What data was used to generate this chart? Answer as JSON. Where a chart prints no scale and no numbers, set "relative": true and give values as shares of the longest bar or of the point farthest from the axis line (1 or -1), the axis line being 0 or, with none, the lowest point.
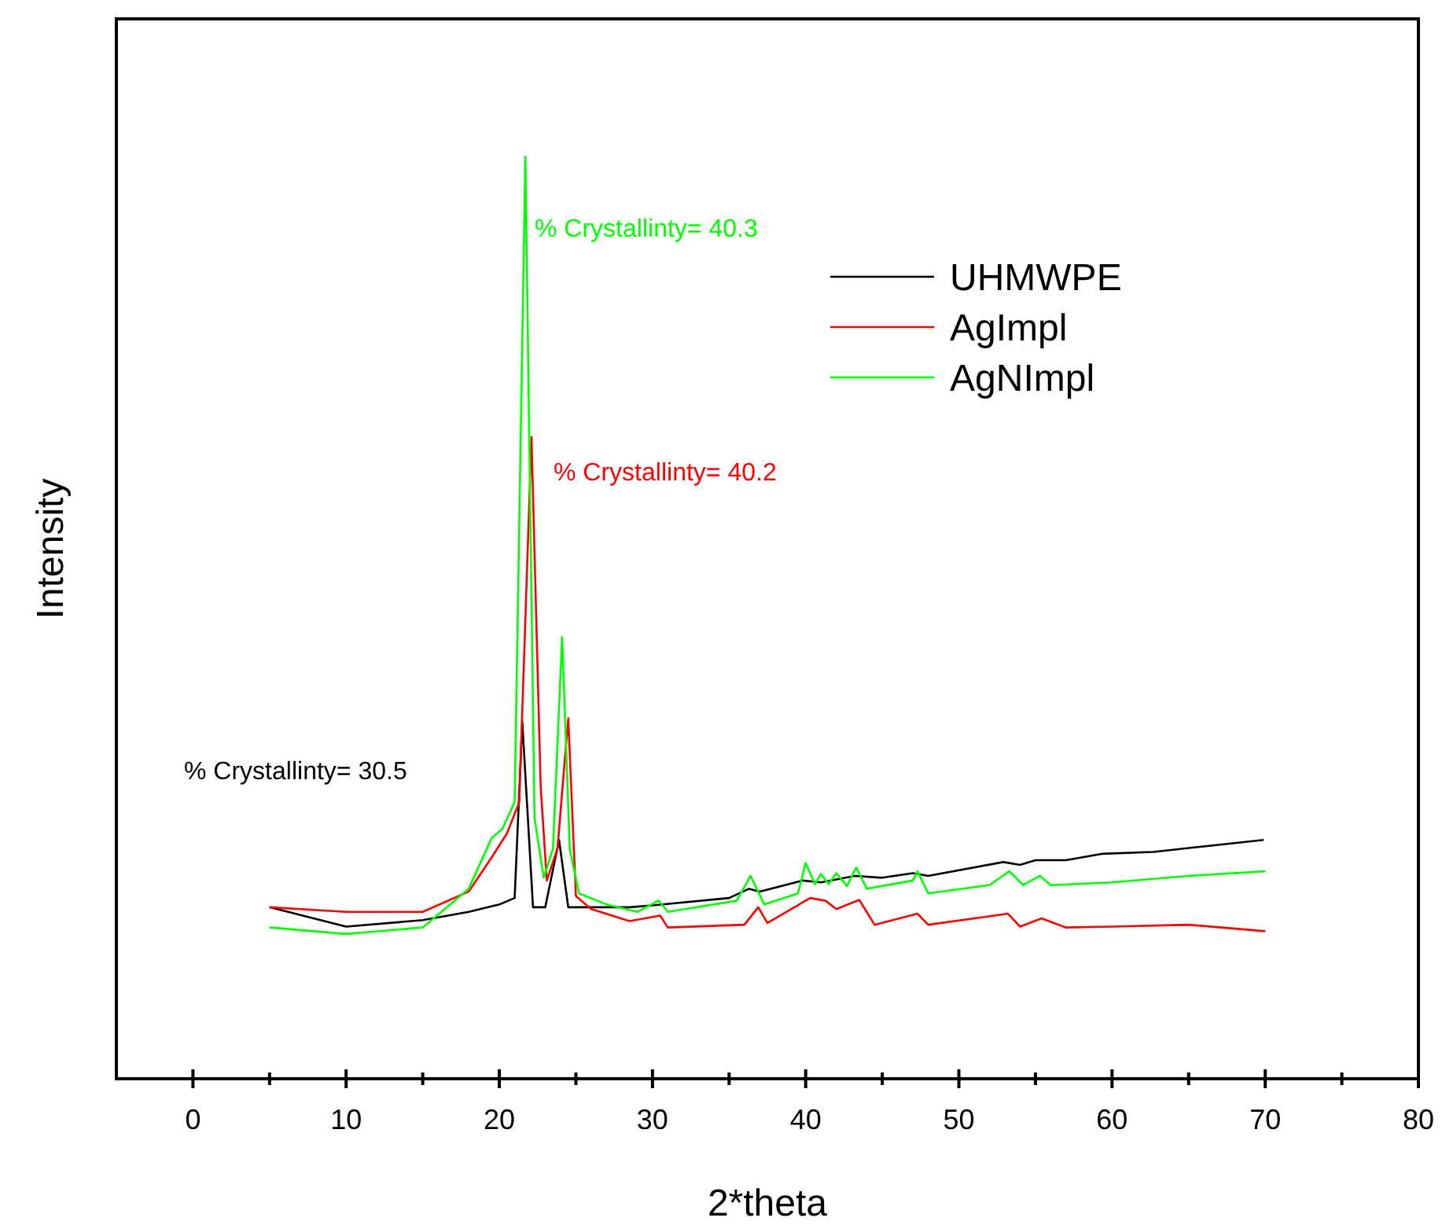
{
  "chart_data": {
    "type": "line",
    "relative": true,
    "xlabel": "2*theta",
    "ylabel": "Intensity",
    "xlim": [
      -5,
      80
    ],
    "xticks": [
      0,
      {
        "value": 5,
        "label": null
      },
      10,
      {
        "value": 15,
        "label": null
      },
      20,
      {
        "value": 25,
        "label": null
      },
      30,
      {
        "value": 35,
        "label": null
      },
      40,
      {
        "value": 45,
        "label": null
      },
      50,
      {
        "value": 55,
        "label": null
      },
      60,
      {
        "value": 65,
        "label": null
      },
      70,
      {
        "value": 75,
        "label": null
      },
      80
    ],
    "legend": "top right",
    "grid": false,
    "marker": "none",
    "line_style": "solid",
    "series": [
      {
        "name": "UHMWPE",
        "color": "#000000",
        "x": [
          5,
          10,
          15,
          18,
          20,
          21,
          21.5,
          22.2,
          23,
          23.9,
          24.5,
          26,
          28.5,
          30,
          35,
          36.3,
          37,
          39.8,
          41,
          43.2,
          45,
          47,
          48,
          52.9,
          54,
          55,
          57,
          59.4,
          62.7,
          66,
          69.9
        ],
        "values": [
          0.186,
          0.165,
          0.172,
          0.181,
          0.189,
          0.196,
          0.387,
          0.186,
          0.186,
          0.259,
          0.186,
          0.186,
          0.186,
          0.188,
          0.196,
          0.206,
          0.203,
          0.215,
          0.213,
          0.22,
          0.218,
          0.223,
          0.22,
          0.235,
          0.232,
          0.237,
          0.237,
          0.244,
          0.246,
          0.252,
          0.259
        ]
      },
      {
        "name": "AgImpl",
        "color": "#ff0000",
        "x": [
          5,
          10,
          15,
          18,
          19.5,
          20.5,
          21.3,
          22.1,
          22.7,
          23.1,
          23.8,
          24.5,
          25,
          26,
          28.5,
          30.5,
          31,
          36,
          36.9,
          37.5,
          40.3,
          41.3,
          42,
          43.5,
          44.5,
          47.3,
          48,
          53.2,
          54,
          55.4,
          57,
          60,
          65,
          70
        ],
        "values": [
          0.186,
          0.181,
          0.181,
          0.203,
          0.24,
          0.266,
          0.3,
          0.696,
          0.317,
          0.215,
          0.25,
          0.391,
          0.198,
          0.184,
          0.171,
          0.177,
          0.164,
          0.167,
          0.186,
          0.169,
          0.196,
          0.193,
          0.184,
          0.194,
          0.167,
          0.179,
          0.167,
          0.179,
          0.165,
          0.174,
          0.164,
          0.165,
          0.167,
          0.16
        ]
      },
      {
        "name": "AgNImpl",
        "color": "#00ff00",
        "x": [
          5,
          10,
          15,
          18,
          19.5,
          20.2,
          21,
          21.7,
          22.3,
          22.9,
          23.5,
          24.1,
          24.6,
          25.2,
          27,
          29,
          30.4,
          31,
          35.5,
          36.4,
          37.3,
          39.5,
          40,
          40.6,
          41,
          41.5,
          42,
          42.7,
          43.3,
          44,
          47,
          47.3,
          48,
          52,
          53.3,
          54.2,
          55.3,
          56,
          60,
          65,
          70
        ],
        "values": [
          0.164,
          0.157,
          0.164,
          0.206,
          0.261,
          0.271,
          0.3,
          1,
          0.283,
          0.218,
          0.249,
          0.479,
          0.249,
          0.201,
          0.189,
          0.181,
          0.193,
          0.181,
          0.193,
          0.22,
          0.189,
          0.201,
          0.234,
          0.211,
          0.222,
          0.211,
          0.223,
          0.209,
          0.229,
          0.206,
          0.215,
          0.225,
          0.201,
          0.21,
          0.225,
          0.21,
          0.22,
          0.21,
          0.213,
          0.22,
          0.225
        ]
      }
    ],
    "annotations": [
      "% Crystallinty= 40.3",
      "% Crystallinty= 40.2",
      "% Crystallinty= 30.5"
    ]
  }
}
